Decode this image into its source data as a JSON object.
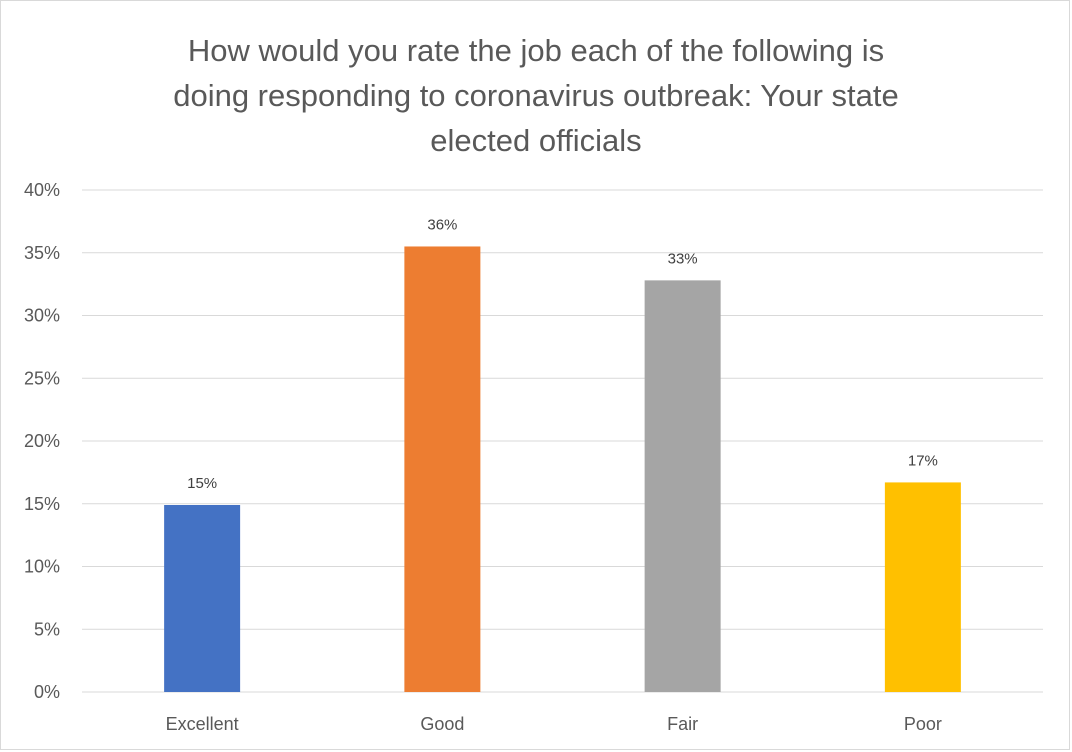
{
  "chart_data": {
    "type": "bar",
    "title": "How would you rate the job each of the following is doing responding to coronavirus outbreak: Your state elected officials",
    "title_lines": [
      "How would you rate the job each of the following is",
      "doing responding to coronavirus outbreak: Your state",
      "elected officials"
    ],
    "categories": [
      "Excellent",
      "Good",
      "Fair",
      "Poor"
    ],
    "values": [
      14.9,
      35.5,
      32.8,
      16.7
    ],
    "data_labels": [
      "15%",
      "36%",
      "33%",
      "17%"
    ],
    "colors": [
      "#4472c4",
      "#ed7d31",
      "#a5a5a5",
      "#ffc000"
    ],
    "ylim": [
      0,
      40
    ],
    "yticks": [
      0,
      5,
      10,
      15,
      20,
      25,
      30,
      35,
      40
    ],
    "ytick_labels": [
      "0%",
      "5%",
      "10%",
      "15%",
      "20%",
      "25%",
      "30%",
      "35%",
      "40%"
    ],
    "grid": true,
    "legend": "none",
    "xlabel": "",
    "ylabel": ""
  }
}
